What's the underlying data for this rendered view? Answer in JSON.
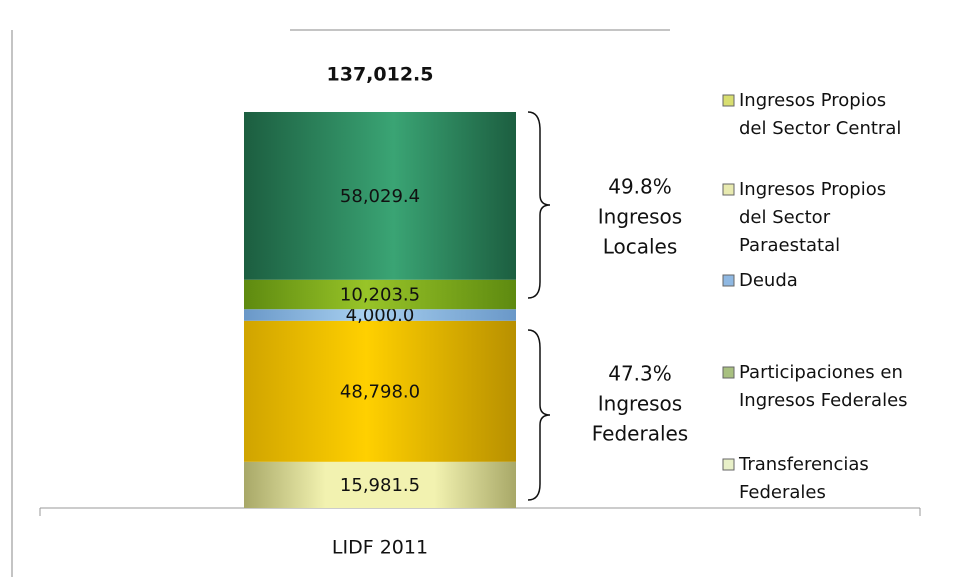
{
  "chart_data": {
    "type": "stacked-bar",
    "categories": [
      "LIDF 2011"
    ],
    "total_label": "137,012.5",
    "series": [
      {
        "name": "Transferencias Federales",
        "color": "#e6e6a0",
        "values": [
          15981.5
        ],
        "value_labels": [
          "15,981.5"
        ]
      },
      {
        "name": "Participaciones en Ingresos Federales",
        "color": "#f2c200",
        "values": [
          48798.0
        ],
        "value_labels": [
          "48,798.0"
        ]
      },
      {
        "name": "Deuda",
        "color": "#8fb8e2",
        "values": [
          4000.0
        ],
        "value_labels": [
          "4,000.0"
        ]
      },
      {
        "name": "Ingresos Propios del Sector Paraestatal",
        "color": "#7ea820",
        "values": [
          10203.5
        ],
        "value_labels": [
          "10,203.5"
        ]
      },
      {
        "name": "Ingresos Propios del Sector Central",
        "color": "#2a8a5c",
        "values": [
          58029.4
        ],
        "value_labels": [
          "58,029.4"
        ]
      }
    ],
    "annotations": [
      {
        "lines": [
          "49.8%",
          "Ingresos",
          "Locales"
        ]
      },
      {
        "lines": [
          "47.3%",
          "Ingresos",
          "Federales"
        ]
      }
    ]
  }
}
